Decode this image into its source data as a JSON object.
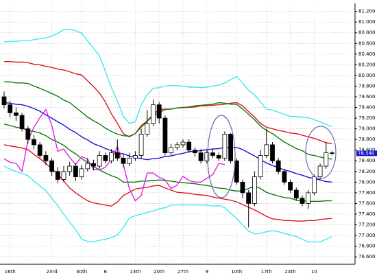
{
  "chart_data": {
    "type": "candlestick",
    "categories": [
      null,
      "16th",
      null,
      null,
      null,
      null,
      null,
      null,
      "23rd",
      null,
      null,
      null,
      null,
      "30th",
      null,
      null,
      null,
      "6",
      null,
      null,
      null,
      null,
      "13th",
      null,
      null,
      null,
      "20th",
      null,
      null,
      null,
      "27th",
      null,
      null,
      null,
      "9",
      null,
      null,
      null,
      null,
      "10th",
      null,
      null,
      null,
      null,
      "17th",
      null,
      null,
      null,
      "24th",
      null,
      null,
      null,
      "10",
      null,
      null,
      null
    ],
    "open": [
      79.6,
      79.45,
      79.3,
      79.25,
      79.0,
      78.8,
      78.7,
      78.5,
      78.4,
      78.2,
      78.05,
      78.2,
      78.3,
      78.1,
      78.25,
      78.35,
      78.3,
      78.5,
      78.4,
      78.55,
      78.45,
      78.35,
      78.45,
      78.5,
      78.9,
      79.1,
      79.45,
      79.2,
      78.55,
      78.65,
      78.7,
      78.75,
      78.6,
      78.55,
      78.4,
      78.55,
      78.5,
      78.45,
      78.9,
      78.4,
      78.0,
      77.8,
      77.6,
      78.1,
      78.5,
      78.7,
      78.4,
      78.2,
      78.0,
      77.85,
      77.7,
      77.6,
      77.8,
      78.1,
      78.3,
      78.55
    ],
    "high": [
      79.7,
      79.52,
      79.4,
      79.3,
      79.05,
      78.88,
      78.75,
      78.58,
      78.45,
      78.28,
      78.3,
      78.38,
      78.35,
      78.32,
      78.45,
      78.42,
      78.58,
      78.55,
      78.62,
      78.8,
      78.52,
      78.55,
      78.58,
      79.0,
      79.35,
      79.55,
      79.5,
      79.25,
      78.72,
      78.75,
      78.8,
      78.8,
      78.65,
      78.62,
      78.6,
      78.62,
      78.55,
      78.95,
      78.92,
      78.45,
      78.05,
      77.85,
      78.2,
      78.6,
      79.0,
      78.75,
      78.45,
      78.25,
      78.05,
      77.9,
      77.75,
      77.85,
      78.15,
      78.35,
      78.75,
      78.58
    ],
    "low": [
      79.38,
      79.22,
      79.15,
      78.95,
      78.72,
      78.62,
      78.45,
      78.32,
      78.12,
      77.98,
      78.0,
      78.12,
      78.02,
      78.05,
      78.2,
      78.22,
      78.25,
      78.35,
      78.35,
      78.4,
      78.28,
      78.3,
      78.4,
      78.45,
      78.85,
      79.05,
      79.1,
      78.5,
      78.5,
      78.6,
      78.65,
      78.55,
      78.48,
      78.35,
      78.35,
      78.45,
      78.4,
      78.4,
      78.35,
      77.95,
      77.7,
      77.15,
      77.55,
      78.05,
      78.45,
      78.35,
      78.15,
      77.95,
      77.8,
      77.65,
      77.55,
      77.5,
      77.75,
      78.05,
      78.25,
      78.5
    ],
    "close": [
      79.45,
      79.3,
      79.25,
      79.0,
      78.8,
      78.7,
      78.5,
      78.4,
      78.2,
      78.05,
      78.2,
      78.3,
      78.1,
      78.25,
      78.35,
      78.3,
      78.5,
      78.4,
      78.55,
      78.45,
      78.35,
      78.45,
      78.5,
      78.9,
      79.1,
      79.45,
      79.2,
      78.55,
      78.65,
      78.7,
      78.75,
      78.6,
      78.55,
      78.4,
      78.55,
      78.5,
      78.45,
      78.9,
      78.4,
      78.0,
      77.8,
      77.6,
      78.1,
      78.5,
      78.7,
      78.4,
      78.2,
      78.0,
      77.85,
      77.7,
      77.6,
      77.8,
      78.1,
      78.3,
      78.55,
      78.54
    ],
    "up_color": "#ffffff",
    "down_color": "#000000",
    "series": [
      {
        "color": "#40e8f0",
        "values": [
          80.63,
          80.64,
          80.64,
          80.65,
          80.65,
          80.67,
          80.69,
          80.7,
          80.74,
          80.79,
          80.86,
          80.87,
          80.84,
          80.79,
          80.65,
          80.51,
          80.37,
          80.07,
          79.77,
          79.52,
          79.23,
          79.1,
          79.13,
          79.45,
          79.64,
          79.76,
          79.77,
          79.8,
          79.81,
          79.81,
          79.8,
          79.78,
          79.78,
          79.77,
          79.78,
          79.8,
          79.82,
          79.86,
          79.92,
          79.98,
          79.86,
          79.72,
          79.64,
          79.5,
          79.37,
          79.35,
          79.31,
          79.27,
          79.23,
          79.23,
          79.22,
          79.21,
          79.17,
          79.13,
          79.08,
          79.04
        ]
      },
      {
        "color": "#40e8f0",
        "values": [
          78.3,
          78.24,
          78.2,
          78.16,
          78.12,
          78.02,
          77.93,
          77.84,
          77.7,
          77.56,
          77.4,
          77.25,
          77.11,
          76.93,
          76.89,
          76.88,
          76.91,
          76.93,
          76.96,
          77.01,
          77.15,
          77.33,
          77.37,
          77.4,
          77.43,
          77.46,
          77.5,
          77.52,
          77.57,
          77.57,
          77.57,
          77.57,
          77.57,
          77.57,
          77.57,
          77.55,
          77.56,
          77.52,
          77.42,
          77.32,
          77.2,
          77.08,
          77.03,
          77.04,
          77.07,
          77.09,
          77.07,
          77.04,
          77.01,
          76.98,
          76.93,
          76.88,
          76.88,
          76.88,
          76.93,
          76.98
        ]
      },
      {
        "color": "#e0141e",
        "values": [
          80.26,
          80.26,
          80.25,
          80.25,
          80.24,
          80.21,
          80.2,
          80.17,
          80.15,
          80.12,
          80.1,
          80.07,
          80.03,
          80.01,
          79.9,
          79.79,
          79.67,
          79.5,
          79.28,
          79.1,
          78.91,
          78.85,
          78.91,
          79.06,
          79.15,
          79.27,
          79.36,
          79.37,
          79.37,
          79.39,
          79.4,
          79.4,
          79.41,
          79.43,
          79.43,
          79.44,
          79.45,
          79.46,
          79.48,
          79.49,
          79.43,
          79.32,
          79.22,
          79.1,
          79.03,
          79.0,
          78.97,
          78.95,
          78.92,
          78.91,
          78.88,
          78.85,
          78.82,
          78.78,
          78.74,
          78.72
        ]
      },
      {
        "color": "#e0141e",
        "values": [
          78.7,
          78.68,
          78.66,
          78.64,
          78.61,
          78.52,
          78.44,
          78.35,
          78.25,
          78.15,
          78.02,
          77.89,
          77.8,
          77.72,
          77.65,
          77.61,
          77.59,
          77.57,
          77.55,
          77.63,
          77.75,
          77.81,
          77.87,
          77.89,
          77.9,
          77.93,
          77.94,
          77.89,
          77.85,
          77.81,
          77.8,
          77.79,
          77.77,
          77.76,
          77.75,
          77.72,
          77.7,
          77.68,
          77.66,
          77.63,
          77.58,
          77.53,
          77.48,
          77.42,
          77.36,
          77.31,
          77.3,
          77.28,
          77.28,
          77.27,
          77.27,
          77.28,
          77.28,
          77.3,
          77.31,
          77.32
        ]
      },
      {
        "color": "#0a7a0a",
        "values": [
          79.88,
          79.88,
          79.86,
          79.86,
          79.85,
          79.8,
          79.76,
          79.71,
          79.66,
          79.61,
          79.54,
          79.49,
          79.4,
          79.31,
          79.22,
          79.15,
          79.09,
          79.01,
          78.95,
          78.9,
          78.87,
          78.86,
          78.91,
          79.03,
          79.14,
          79.24,
          79.3,
          79.36,
          79.37,
          79.39,
          79.4,
          79.41,
          79.43,
          79.44,
          79.45,
          79.46,
          79.49,
          79.48,
          79.46,
          79.46,
          79.37,
          79.27,
          79.17,
          79.05,
          78.97,
          78.91,
          78.83,
          78.75,
          78.69,
          78.63,
          78.59,
          78.52,
          78.5,
          78.47,
          78.45,
          78.43
        ]
      },
      {
        "color": "#0a7a0a",
        "values": [
          79.09,
          79.06,
          79.03,
          79.01,
          78.97,
          78.95,
          78.92,
          78.87,
          78.8,
          78.75,
          78.69,
          78.6,
          78.53,
          78.44,
          78.37,
          78.29,
          78.23,
          78.17,
          78.12,
          78.08,
          78.0,
          78.0,
          78.0,
          78.02,
          78.02,
          78.03,
          78.04,
          78.03,
          78.02,
          78.0,
          77.99,
          77.98,
          77.97,
          77.95,
          77.94,
          77.91,
          77.89,
          77.88,
          77.85,
          77.83,
          77.84,
          77.88,
          77.93,
          77.88,
          77.81,
          77.77,
          77.74,
          77.71,
          77.7,
          77.66,
          77.65,
          77.64,
          77.64,
          77.64,
          77.65,
          77.65
        ]
      },
      {
        "color": "#1414d0",
        "values": [
          79.49,
          79.48,
          79.46,
          79.45,
          79.42,
          79.38,
          79.33,
          79.26,
          79.2,
          79.13,
          79.07,
          78.99,
          78.93,
          78.85,
          78.79,
          78.72,
          78.68,
          78.63,
          78.59,
          78.55,
          78.53,
          78.49,
          78.46,
          78.44,
          78.42,
          78.44,
          78.45,
          78.48,
          78.49,
          78.52,
          78.54,
          78.57,
          78.58,
          78.59,
          78.61,
          78.62,
          78.63,
          78.65,
          78.65,
          78.65,
          78.61,
          78.55,
          78.49,
          78.42,
          78.36,
          78.31,
          78.27,
          78.23,
          78.2,
          78.16,
          78.13,
          78.09,
          78.07,
          78.04,
          78.01,
          78.0
        ]
      },
      {
        "color": "#e020e0",
        "values": [
          78.44,
          78.37,
          78.35,
          78.2,
          78.78,
          79.03,
          79.21,
          79.36,
          79.06,
          78.58,
          78.62,
          78.46,
          78.33,
          78.48,
          78.43,
          78.24,
          78.23,
          78.28,
          78.43,
          78.67,
          78.33,
          77.88,
          77.65,
          77.75,
          78.17,
          78.17,
          78.09,
          78.04,
          77.88,
          77.94,
          78.11,
          78.03,
          78.0,
          78.0,
          78.07,
          78.14,
          78.35,
          78.33,
          null,
          null,
          null,
          null,
          null,
          null,
          null,
          null,
          null,
          null,
          null,
          null,
          null,
          null,
          null,
          null,
          null,
          null
        ]
      }
    ],
    "ylim": [
      76.46,
      81.35
    ],
    "yticks": [
      {
        "value": 76.6,
        "label": "76.600"
      },
      {
        "value": 76.8,
        "label": "76.800"
      },
      {
        "value": 77.0,
        "label": "77.000"
      },
      {
        "value": 77.2,
        "label": "77.200"
      },
      {
        "value": 77.4,
        "label": "77.400"
      },
      {
        "value": 77.6,
        "label": "77.600"
      },
      {
        "value": 77.8,
        "label": "77.800"
      },
      {
        "value": 78.0,
        "label": "78.000"
      },
      {
        "value": 78.2,
        "label": "78.200"
      },
      {
        "value": 78.4,
        "label": "78.400"
      },
      {
        "value": 78.6,
        "label": "78.600"
      },
      {
        "value": 78.8,
        "label": "78.800"
      },
      {
        "value": 79.0,
        "label": "79.000"
      },
      {
        "value": 79.2,
        "label": "79.200"
      },
      {
        "value": 79.4,
        "label": "79.400"
      },
      {
        "value": 79.6,
        "label": "79.600"
      },
      {
        "value": 79.8,
        "label": "79.800"
      },
      {
        "value": 80.0,
        "label": "80.000"
      },
      {
        "value": 80.2,
        "label": "80.200"
      },
      {
        "value": 80.4,
        "label": "80.400"
      },
      {
        "value": 80.6,
        "label": "80.600"
      },
      {
        "value": 80.8,
        "label": "80.800"
      },
      {
        "value": 81.0,
        "label": "81.000"
      },
      {
        "value": 81.2,
        "label": "81.200"
      }
    ],
    "grid": true,
    "last_price": {
      "value": 78.54,
      "label": "78.540"
    }
  }
}
